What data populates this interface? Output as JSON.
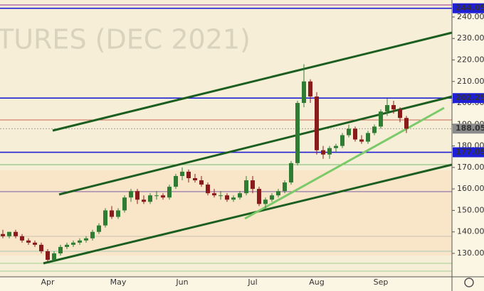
{
  "chart_data": {
    "type": "candlestick",
    "watermark": "TURES (DEC 2021)",
    "categories": [
      null,
      null,
      null,
      null,
      null,
      null,
      null,
      "Apr",
      null,
      null,
      null,
      null,
      null,
      null,
      null,
      null,
      null,
      null,
      "May",
      null,
      null,
      null,
      null,
      null,
      null,
      null,
      null,
      null,
      "Jun",
      null,
      null,
      null,
      null,
      null,
      null,
      null,
      null,
      null,
      null,
      "Jul",
      null,
      null,
      null,
      null,
      null,
      null,
      null,
      null,
      null,
      "Aug",
      null,
      null,
      null,
      null,
      null,
      null,
      null,
      null,
      null,
      "Sep",
      null,
      null,
      null,
      null
    ],
    "open": [
      139,
      138,
      140,
      138,
      136,
      135,
      134,
      131,
      127,
      130,
      133,
      134,
      135,
      136,
      137,
      140,
      143,
      150,
      147,
      150,
      156,
      159,
      155,
      154,
      157,
      157,
      156,
      161,
      166,
      168,
      165,
      164,
      162,
      158,
      157,
      157,
      155,
      156,
      158,
      164,
      160,
      153,
      155,
      157,
      159,
      163,
      172,
      200,
      210,
      203,
      178,
      176,
      179,
      180,
      185,
      188,
      183,
      182,
      186,
      189,
      196,
      199,
      197,
      193
    ],
    "high": [
      141,
      140,
      141,
      139,
      137,
      136,
      135,
      132,
      131,
      134,
      135,
      136,
      137,
      138,
      141,
      144,
      151,
      152,
      151,
      157,
      160,
      160,
      157,
      158,
      159,
      158,
      162,
      167,
      170,
      169,
      167,
      166,
      163,
      160,
      159,
      158,
      157,
      159,
      166,
      166,
      161,
      156,
      158,
      160,
      164,
      173,
      201,
      218,
      211,
      205,
      180,
      180,
      181,
      186,
      190,
      189,
      185,
      187,
      190,
      197,
      202,
      201,
      198,
      194
    ],
    "low": [
      137,
      137,
      137,
      135,
      134,
      133,
      130,
      126,
      126,
      129,
      132,
      133,
      134,
      135,
      136,
      139,
      142,
      146,
      146,
      149,
      154,
      153,
      153,
      153,
      155,
      155,
      155,
      160,
      164,
      163,
      163,
      161,
      157,
      156,
      155,
      154,
      154,
      155,
      157,
      158,
      152,
      151,
      154,
      156,
      158,
      162,
      171,
      198,
      200,
      176,
      174,
      174,
      177,
      179,
      184,
      182,
      181,
      181,
      185,
      188,
      194,
      195,
      191,
      186
    ],
    "close": [
      138,
      140,
      138,
      136,
      135,
      134,
      131,
      127,
      130,
      133,
      134,
      135,
      136,
      137,
      140,
      143,
      150,
      147,
      150,
      156,
      159,
      155,
      154,
      157,
      157,
      156,
      161,
      166,
      168,
      165,
      164,
      162,
      158,
      157,
      157,
      155,
      156,
      158,
      164,
      160,
      153,
      155,
      157,
      159,
      163,
      172,
      200,
      210,
      203,
      178,
      176,
      179,
      180,
      185,
      188,
      183,
      182,
      186,
      189,
      196,
      199,
      197,
      193,
      188
    ],
    "up_color": "#2e7d32",
    "down_color": "#8b1a1a",
    "ylim": [
      119.1,
      247.9
    ],
    "yticks": [
      {
        "value": 130,
        "label": "130.00"
      },
      {
        "value": 140,
        "label": "140.00"
      },
      {
        "value": 150,
        "label": "150.00"
      },
      {
        "value": 160,
        "label": "160.00"
      },
      {
        "value": 170,
        "label": "170.00"
      },
      {
        "value": 180,
        "label": "180.00"
      },
      {
        "value": 190,
        "label": "190.00"
      },
      {
        "value": 200,
        "label": "200.00"
      },
      {
        "value": 210,
        "label": "210.00"
      },
      {
        "value": 220,
        "label": "220.00"
      },
      {
        "value": 230,
        "label": "230.00"
      },
      {
        "value": 240,
        "label": "240.00"
      }
    ],
    "levels": [
      {
        "value": 244.05,
        "color": "#1f1fd6"
      },
      {
        "value": 202.25,
        "color": "#1f1fd6"
      },
      {
        "value": 177.05,
        "color": "#1f1fd6"
      },
      {
        "value": 188.05,
        "color": "#8a8a8a"
      }
    ]
  }
}
